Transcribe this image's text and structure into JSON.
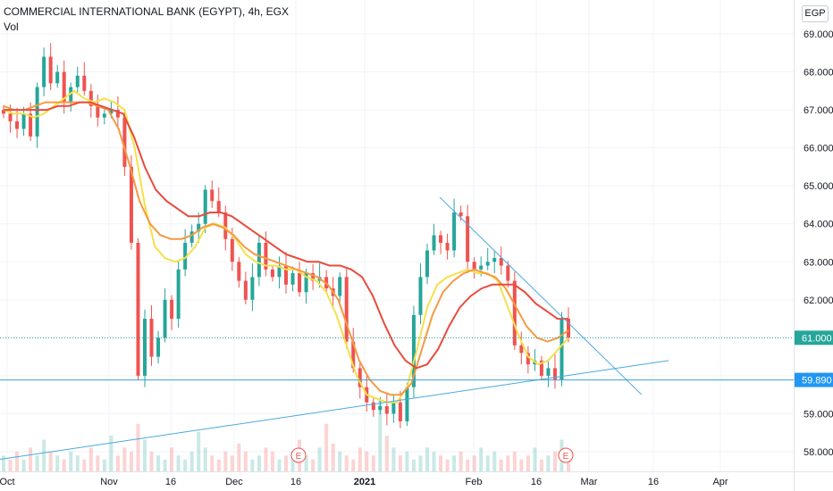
{
  "header": {
    "title": "COMMERCIAL INTERNATIONAL BANK (EGYPT), 4h, EGX",
    "volume_label": "Vol",
    "currency_badge": "EGP"
  },
  "colors": {
    "candle_up": "#26a69a",
    "candle_down": "#ef5350",
    "ma_red": "#e84c3d",
    "ma_orange": "#f59a42",
    "ma_yellow": "#f5e04a",
    "trendline": "#4aa8e0",
    "support": "#3aa0d8",
    "price_badge": "#26a69a",
    "support_badge": "#2196f3"
  },
  "chart_data": {
    "type": "candlestick",
    "y_ticks": [
      "69.000",
      "68.000",
      "67.000",
      "66.000",
      "65.000",
      "64.000",
      "63.000",
      "62.000",
      "61.000",
      "60.000",
      "59.000",
      "58.000"
    ],
    "y_range": [
      57.75,
      69.35
    ],
    "x_ticks": [
      "Oct",
      "Nov",
      "16",
      "Dec",
      "16",
      "2021",
      "Feb",
      "16",
      "Mar",
      "16",
      "Apr"
    ],
    "price_badges": [
      {
        "value": 61.0,
        "label": "61.000",
        "kind": "last"
      },
      {
        "value": 59.89,
        "label": "59.890",
        "kind": "support"
      }
    ],
    "earnings_markers": [
      "E",
      "E"
    ],
    "series": [
      {
        "role": "close",
        "values": [
          66.9,
          66.7,
          66.5,
          66.9,
          66.3,
          67.6,
          68.4,
          67.7,
          68.0,
          67.2,
          67.6,
          67.9,
          67.5,
          67.1,
          66.8,
          66.9,
          67.0,
          66.8,
          65.5,
          63.5,
          60.0,
          61.5,
          60.5,
          61.0,
          62.0,
          61.5,
          62.8,
          63.5,
          63.8,
          64.0,
          64.9,
          64.6,
          64.3,
          63.6,
          63.0,
          62.5,
          62.0,
          62.6,
          63.5,
          62.8,
          62.6,
          62.9,
          62.4,
          62.7,
          62.2,
          62.7,
          62.5,
          62.6,
          62.3,
          62.1,
          62.6,
          60.9,
          60.2,
          59.7,
          59.3,
          59.1,
          59.2,
          59.0,
          59.3,
          58.8,
          59.7,
          61.6,
          62.6,
          63.3,
          63.7,
          63.5,
          63.3,
          64.3,
          64.2,
          63.0,
          62.8,
          62.9,
          63.0,
          63.1,
          62.9,
          62.5,
          60.8,
          60.6,
          60.3,
          60.4,
          60.0,
          60.2,
          59.9,
          61.5,
          61.0
        ]
      },
      {
        "role": "ma_fast",
        "name": "",
        "values": [
          67.0,
          66.9,
          66.9,
          66.8,
          66.9,
          67.1,
          67.3,
          67.5,
          67.3,
          67.2,
          67.3,
          67.2,
          67.0,
          66.0,
          64.5,
          63.4,
          63.1,
          63.0,
          63.1,
          63.4,
          63.9,
          64.0,
          63.9,
          63.6,
          63.2,
          63.0,
          62.9,
          62.9,
          62.8,
          62.8,
          62.6,
          62.5,
          62.2,
          61.6,
          60.8,
          60.0,
          59.5,
          59.4,
          59.3,
          59.3,
          59.7,
          60.7,
          61.8,
          62.4,
          62.6,
          62.7,
          62.8,
          62.7,
          62.7,
          62.5,
          61.8,
          61.1,
          60.5,
          60.3,
          60.4,
          60.7,
          61.0
        ]
      },
      {
        "role": "ma_mid",
        "name": "",
        "values": [
          67.1,
          67.0,
          67.0,
          67.1,
          67.2,
          67.2,
          67.2,
          67.2,
          67.2,
          67.1,
          67.0,
          66.5,
          65.6,
          64.6,
          64.0,
          63.7,
          63.6,
          63.6,
          63.7,
          63.9,
          64.0,
          63.9,
          63.7,
          63.4,
          63.2,
          63.1,
          63.0,
          62.9,
          62.8,
          62.7,
          62.6,
          62.4,
          62.0,
          61.2,
          60.4,
          59.9,
          59.6,
          59.5,
          59.5,
          59.8,
          60.7,
          61.6,
          62.2,
          62.5,
          62.7,
          62.8,
          62.7,
          62.6,
          62.3,
          61.8,
          61.3,
          61.0,
          60.9,
          61.0,
          61.2
        ]
      },
      {
        "role": "ma_slow",
        "name": "",
        "values": [
          67.0,
          67.0,
          67.0,
          67.0,
          67.0,
          67.1,
          67.1,
          67.2,
          67.2,
          67.1,
          67.0,
          66.9,
          66.3,
          65.5,
          64.9,
          64.6,
          64.4,
          64.2,
          64.2,
          64.3,
          64.3,
          64.2,
          64.0,
          63.8,
          63.6,
          63.4,
          63.2,
          63.1,
          63.0,
          63.0,
          62.9,
          62.9,
          62.8,
          62.6,
          62.1,
          61.4,
          60.8,
          60.4,
          60.2,
          60.3,
          60.7,
          61.3,
          61.8,
          62.1,
          62.3,
          62.4,
          62.4,
          62.4,
          62.2,
          61.9,
          61.7,
          61.5,
          61.5
        ]
      }
    ],
    "annotations": [
      {
        "kind": "descending-trendline",
        "from": [
          63.0,
          64.7
        ],
        "to": [
          63.0,
          59.5
        ]
      },
      {
        "kind": "ascending-trendline",
        "from": [
          0,
          57.8
        ],
        "to": [
          1,
          60.4
        ]
      },
      {
        "kind": "horizontal-support",
        "value": 59.89
      }
    ],
    "volume": [
      4,
      3,
      5,
      3,
      6,
      4,
      8,
      5,
      4,
      3,
      5,
      4,
      3,
      6,
      4,
      3,
      9,
      4,
      6,
      5,
      12,
      8,
      5,
      4,
      3,
      6,
      4,
      3,
      5,
      10,
      6,
      4,
      3,
      5,
      4,
      7,
      5,
      3,
      4,
      6,
      5,
      3,
      4,
      5,
      8,
      4,
      3,
      6,
      12,
      7,
      5,
      4,
      3,
      6,
      5,
      4,
      18,
      9,
      6,
      4,
      5,
      3,
      4,
      6,
      5,
      4,
      3,
      4,
      5,
      3,
      4,
      6,
      4,
      5,
      3,
      4,
      5,
      3,
      4,
      6,
      3,
      4,
      5,
      8,
      4
    ]
  }
}
